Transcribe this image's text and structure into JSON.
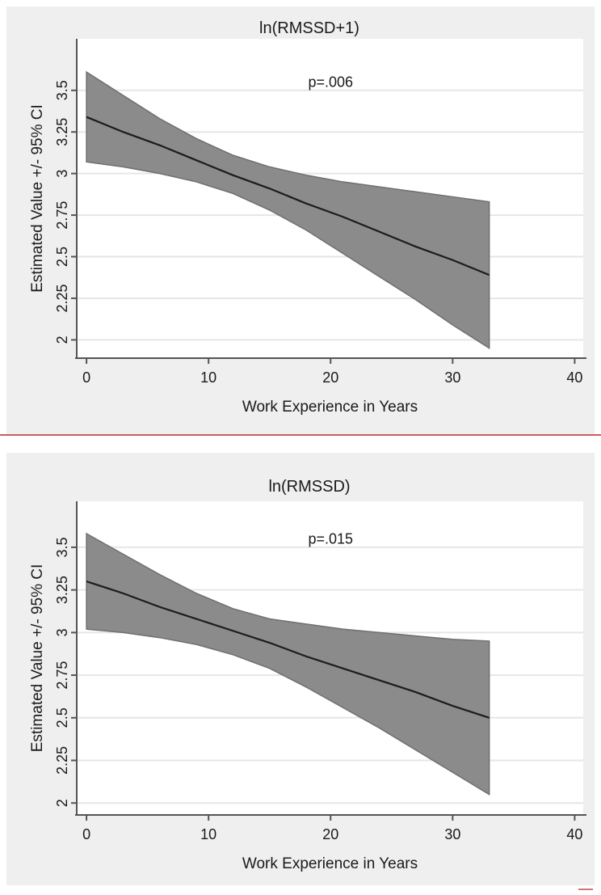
{
  "colors": {
    "figure_bg": "#efefef",
    "plot_bg": "#ffffff",
    "grid": "#e6e6e6",
    "band": "#8b8b8b",
    "band_edge": "#6f6f6f",
    "line": "#1c1c1c",
    "axis": "#545454",
    "text": "#1a1a1a",
    "separator": "#cd5b5b"
  },
  "chart_data": [
    {
      "type": "line",
      "title": "ln(RMSSD+1)",
      "annotation": {
        "text": "p=.006",
        "x": 20,
        "y": 3.52
      },
      "xlabel": "Work Experience in Years",
      "ylabel": "Estimated Value +/- 95% CI",
      "x_ticks": [
        0,
        10,
        20,
        30,
        40
      ],
      "x_tick_labels": [
        "0",
        "10",
        "20",
        "30",
        "40"
      ],
      "y_ticks": [
        2,
        2.25,
        2.5,
        2.75,
        3,
        3.25,
        3.5
      ],
      "y_tick_labels": [
        "2",
        "2.25",
        "2.5",
        "2.75",
        "3",
        "3.25",
        "3.5"
      ],
      "xlim": [
        -0.8,
        40.7
      ],
      "ylim": [
        1.89,
        3.81
      ],
      "grid": "horizontal",
      "legend": "none",
      "x": [
        0,
        3,
        6,
        9,
        12,
        15,
        18,
        21,
        24,
        27,
        30,
        33
      ],
      "fit": [
        3.34,
        3.25,
        3.17,
        3.08,
        2.99,
        2.91,
        2.82,
        2.74,
        2.65,
        2.56,
        2.48,
        2.39
      ],
      "ci_upper": [
        3.61,
        3.47,
        3.33,
        3.21,
        3.11,
        3.04,
        2.99,
        2.95,
        2.92,
        2.89,
        2.86,
        2.83
      ],
      "ci_lower": [
        3.07,
        3.04,
        3.0,
        2.95,
        2.88,
        2.78,
        2.66,
        2.52,
        2.38,
        2.24,
        2.09,
        1.95
      ]
    },
    {
      "type": "line",
      "title": "ln(RMSSD)",
      "annotation": {
        "text": "p=.015",
        "x": 20,
        "y": 3.52
      },
      "xlabel": "Work Experience in Years",
      "ylabel": "Estimated Value +/- 95% CI",
      "x_ticks": [
        0,
        10,
        20,
        30,
        40
      ],
      "x_tick_labels": [
        "0",
        "10",
        "20",
        "30",
        "40"
      ],
      "y_ticks": [
        2,
        2.25,
        2.5,
        2.75,
        3,
        3.25,
        3.5
      ],
      "y_tick_labels": [
        "2",
        "2.25",
        "2.5",
        "2.75",
        "3",
        "3.25",
        "3.5"
      ],
      "xlim": [
        -0.8,
        40.7
      ],
      "ylim": [
        1.93,
        3.77
      ],
      "grid": "horizontal",
      "legend": "none",
      "x": [
        0,
        3,
        6,
        9,
        12,
        15,
        18,
        21,
        24,
        27,
        30,
        33
      ],
      "fit": [
        3.3,
        3.23,
        3.15,
        3.08,
        3.01,
        2.94,
        2.86,
        2.79,
        2.72,
        2.65,
        2.57,
        2.5
      ],
      "ci_upper": [
        3.58,
        3.46,
        3.34,
        3.23,
        3.14,
        3.08,
        3.05,
        3.02,
        3.0,
        2.98,
        2.96,
        2.95
      ],
      "ci_lower": [
        3.02,
        3.0,
        2.97,
        2.93,
        2.87,
        2.79,
        2.68,
        2.56,
        2.44,
        2.31,
        2.18,
        2.05
      ]
    }
  ]
}
